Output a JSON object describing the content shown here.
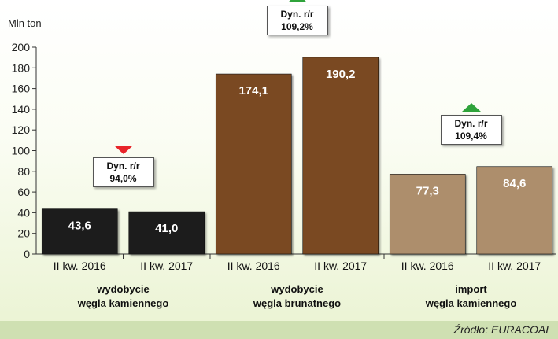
{
  "chart_data": {
    "type": "bar",
    "ylabel": "Mln ton",
    "ylim": [
      0,
      200
    ],
    "yticks": [
      0,
      20,
      40,
      60,
      80,
      100,
      120,
      140,
      160,
      180,
      200
    ],
    "categories": [
      "II kw. 2016",
      "II kw. 2017",
      "II kw. 2016",
      "II kw. 2017",
      "II kw. 2016",
      "II kw. 2017"
    ],
    "values": [
      43.6,
      41.0,
      174.1,
      190.2,
      77.3,
      84.6
    ],
    "value_labels": [
      "43,6",
      "41,0",
      "174,1",
      "190,2",
      "77,3",
      "84,6"
    ],
    "groups": [
      {
        "line1": "wydobycie",
        "line2": "węgla kamiennego",
        "color": "#1f1f1f",
        "dyn_title": "Dyn. r/r",
        "dyn_value": "94,0%",
        "direction": "down"
      },
      {
        "line1": "wydobycie",
        "line2": "węgla brunatnego",
        "color": "#7a4a22",
        "dyn_title": "Dyn. r/r",
        "dyn_value": "109,2%",
        "direction": "up"
      },
      {
        "line1": "import",
        "line2": "węgla kamiennego",
        "color": "#ad8e6c",
        "dyn_title": "Dyn. r/r",
        "dyn_value": "109,4%",
        "direction": "up"
      }
    ]
  },
  "source": "Źródło: EURACOAL"
}
